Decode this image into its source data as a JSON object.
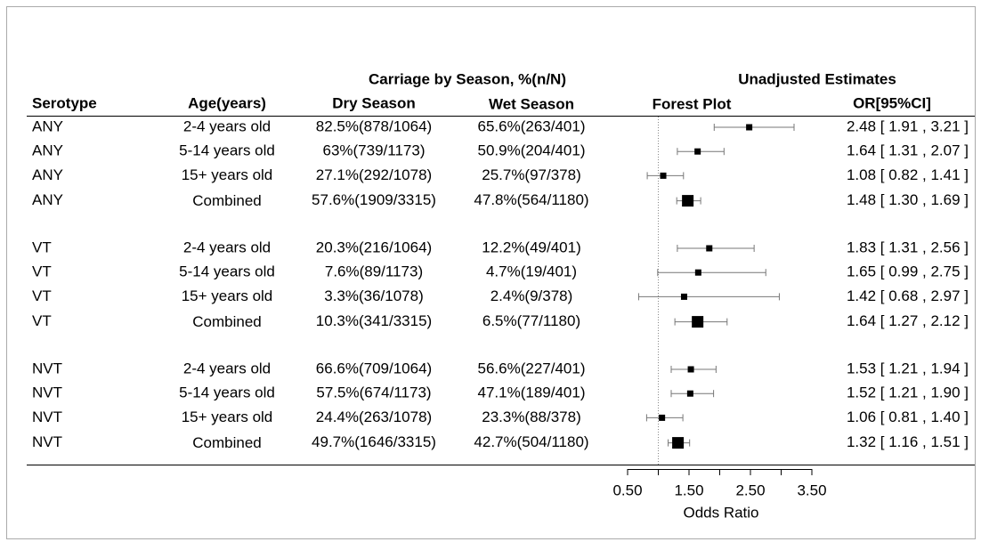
{
  "chart_data": {
    "type": "forest",
    "group_header": "Carriage by Season, %(n/N)",
    "estimates_header": "Unadjusted Estimates",
    "columns": [
      "Serotype",
      "Age(years)",
      "Dry Season",
      "Wet Season",
      "Forest Plot",
      "OR[95%CI]"
    ],
    "x_label": "Odds Ratio",
    "xlim": [
      0.5,
      3.5
    ],
    "xticks": [
      {
        "value": 0.5,
        "label": "0.50"
      },
      {
        "value": 1.5,
        "label": "1.50"
      },
      {
        "value": 2.5,
        "label": "2.50"
      },
      {
        "value": 3.5,
        "label": "3.50"
      }
    ],
    "xticks_minor": [
      1,
      2,
      3
    ],
    "reference_line": 1,
    "color": "#000000",
    "rows": [
      {
        "serotype": "ANY",
        "age": "2-4 years old",
        "dry": "82.5%(878/1064)",
        "wet": "65.6%(263/401)",
        "or": 2.48,
        "ci_low": 1.91,
        "ci_high": 3.21,
        "or_label": "2.48 [ 1.91 , 3.21 ]"
      },
      {
        "serotype": "ANY",
        "age": "5-14 years old",
        "dry": "63%(739/1173)",
        "wet": "50.9%(204/401)",
        "or": 1.64,
        "ci_low": 1.31,
        "ci_high": 2.07,
        "or_label": "1.64 [ 1.31 , 2.07 ]"
      },
      {
        "serotype": "ANY",
        "age": "15+ years old",
        "dry": "27.1%(292/1078)",
        "wet": "25.7%(97/378)",
        "or": 1.08,
        "ci_low": 0.82,
        "ci_high": 1.41,
        "or_label": "1.08 [ 0.82 , 1.41 ]"
      },
      {
        "serotype": "ANY",
        "age": "Combined",
        "dry": "57.6%(1909/3315)",
        "wet": "47.8%(564/1180)",
        "or": 1.48,
        "ci_low": 1.3,
        "ci_high": 1.69,
        "or_label": "1.48 [ 1.30 , 1.69 ]"
      },
      {
        "serotype": "VT",
        "age": "2-4 years old",
        "dry": "20.3%(216/1064)",
        "wet": "12.2%(49/401)",
        "or": 1.83,
        "ci_low": 1.31,
        "ci_high": 2.56,
        "or_label": "1.83 [ 1.31 , 2.56 ]"
      },
      {
        "serotype": "VT",
        "age": "5-14 years old",
        "dry": "7.6%(89/1173)",
        "wet": "4.7%(19/401)",
        "or": 1.65,
        "ci_low": 0.99,
        "ci_high": 2.75,
        "or_label": "1.65 [ 0.99 , 2.75 ]"
      },
      {
        "serotype": "VT",
        "age": "15+ years old",
        "dry": "3.3%(36/1078)",
        "wet": "2.4%(9/378)",
        "or": 1.42,
        "ci_low": 0.68,
        "ci_high": 2.97,
        "or_label": "1.42 [ 0.68 , 2.97 ]"
      },
      {
        "serotype": "VT",
        "age": "Combined",
        "dry": "10.3%(341/3315)",
        "wet": "6.5%(77/1180)",
        "or": 1.64,
        "ci_low": 1.27,
        "ci_high": 2.12,
        "or_label": "1.64 [ 1.27 , 2.12 ]"
      },
      {
        "serotype": "NVT",
        "age": "2-4 years old",
        "dry": "66.6%(709/1064)",
        "wet": "56.6%(227/401)",
        "or": 1.53,
        "ci_low": 1.21,
        "ci_high": 1.94,
        "or_label": "1.53 [ 1.21 , 1.94 ]"
      },
      {
        "serotype": "NVT",
        "age": "5-14 years old",
        "dry": "57.5%(674/1173)",
        "wet": "47.1%(189/401)",
        "or": 1.52,
        "ci_low": 1.21,
        "ci_high": 1.9,
        "or_label": "1.52 [ 1.21 , 1.90 ]"
      },
      {
        "serotype": "NVT",
        "age": "15+ years old",
        "dry": "24.4%(263/1078)",
        "wet": "23.3%(88/378)",
        "or": 1.06,
        "ci_low": 0.81,
        "ci_high": 1.4,
        "or_label": "1.06 [ 0.81 , 1.40 ]"
      },
      {
        "serotype": "NVT",
        "age": "Combined",
        "dry": "49.7%(1646/3315)",
        "wet": "42.7%(504/1180)",
        "or": 1.32,
        "ci_low": 1.16,
        "ci_high": 1.51,
        "or_label": "1.32 [ 1.16 , 1.51 ]"
      }
    ]
  }
}
